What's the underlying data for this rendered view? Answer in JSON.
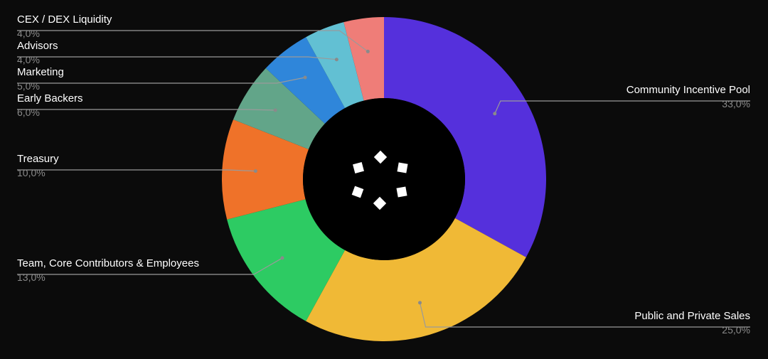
{
  "chart_data": {
    "type": "pie",
    "donut": true,
    "start_angle_deg": 0,
    "direction": "clockwise",
    "slices": [
      {
        "label": "Community Incentive Pool",
        "value": 33.0,
        "value_label": "33,0%",
        "color": "#5530dc",
        "label_side": "right"
      },
      {
        "label": "Public and Private Sales",
        "value": 25.0,
        "value_label": "25,0%",
        "color": "#f0b936",
        "label_side": "right"
      },
      {
        "label": "Team, Core Contributors & Employees",
        "value": 13.0,
        "value_label": "13,0%",
        "color": "#2dcb63",
        "label_side": "left"
      },
      {
        "label": "Treasury",
        "value": 10.0,
        "value_label": "10,0%",
        "color": "#ef7229",
        "label_side": "left"
      },
      {
        "label": "Early Backers",
        "value": 6.0,
        "value_label": "6,0%",
        "color": "#62a589",
        "label_side": "left"
      },
      {
        "label": "Marketing",
        "value": 5.0,
        "value_label": "5,0%",
        "color": "#2f86da",
        "label_side": "left"
      },
      {
        "label": "Advisors",
        "value": 4.0,
        "value_label": "4,0%",
        "color": "#62c0d3",
        "label_side": "left"
      },
      {
        "label": "CEX / DEX Liquidity",
        "value": 4.0,
        "value_label": "4,0%",
        "color": "#ef7d78",
        "label_side": "left"
      }
    ],
    "legend": "none",
    "center_logo": "diamond-dots-logo"
  },
  "colors": {
    "background": "#0b0b0b",
    "hole": "#000000",
    "label_text": "#ffffff",
    "value_text": "#8a8a8a",
    "leader_line": "#9a9a9a",
    "logo": "#ffffff"
  }
}
